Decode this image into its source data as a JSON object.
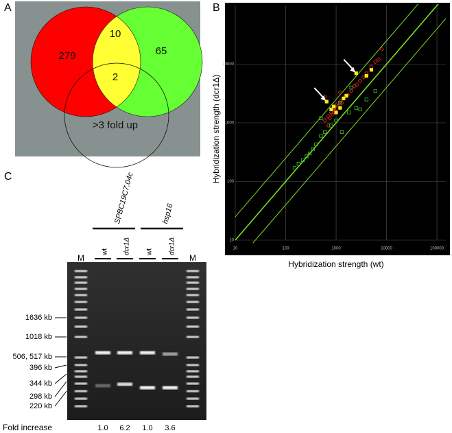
{
  "panel_labels": [
    "A",
    "B",
    "C"
  ],
  "venn": {
    "left_count": "279",
    "top_overlap": "10",
    "right_count": "65",
    "center_count": "2",
    "circle_label": ">3 fold up"
  },
  "chart_data": {
    "type": "scatter",
    "log_x": true,
    "log_y": true,
    "grid": true,
    "xlabel": "Hybridization strength (wt)",
    "ylabel": "Hybridization strength (dcr1Δ)",
    "xlim": [
      10,
      150000
    ],
    "ylim": [
      10,
      100000
    ],
    "xticks": [
      10,
      100,
      1000,
      10000,
      100000
    ],
    "yticks": [
      10,
      100,
      1000,
      10000
    ],
    "guide_factors": [
      0.4,
      1,
      2.5
    ],
    "guide_color": "#7ddc1f",
    "series": [
      {
        "color": "#e0281e",
        "marker": "diamond",
        "x": [
          600,
          700,
          750,
          800,
          850,
          900,
          950,
          1000,
          1100,
          1200,
          1300,
          1500,
          1700,
          2000,
          2300,
          2600,
          3000,
          3500,
          4000,
          5000,
          6000,
          7000,
          600,
          900,
          1200,
          8000,
          700
        ],
        "values": [
          1100,
          1300,
          1200,
          1500,
          1400,
          1700,
          1600,
          2000,
          1900,
          2300,
          2200,
          2800,
          3000,
          3500,
          4200,
          4500,
          5200,
          6000,
          7000,
          9000,
          11000,
          12000,
          2800,
          1800,
          3300,
          18000,
          900
        ]
      },
      {
        "color": "#3fbf2a",
        "marker": "square",
        "x": [
          150,
          180,
          220,
          260,
          300,
          350,
          400,
          500,
          600,
          800,
          1000,
          1300,
          1800,
          2500,
          3000,
          4000,
          6000,
          500,
          1200,
          2000
        ],
        "values": [
          170,
          200,
          230,
          270,
          300,
          360,
          430,
          600,
          700,
          900,
          1100,
          700,
          1500,
          1800,
          1700,
          2500,
          3500,
          1200,
          2200,
          4000
        ]
      },
      {
        "color": "#ffe81a",
        "marker": "filled-square",
        "x": [
          650,
          800,
          900,
          1000,
          1200,
          1400,
          1600,
          2500,
          4000,
          5000
        ],
        "values": [
          2300,
          1700,
          1900,
          1500,
          1800,
          2600,
          2900,
          7000,
          6300,
          8000
        ]
      }
    ]
  },
  "gel": {
    "genes": [
      "SPBC19C7.04c",
      "hsp16"
    ],
    "lanes": [
      "M",
      "wt",
      "dcr1Δ",
      "wt",
      "dcr1Δ",
      "M"
    ],
    "size_labels": [
      "1636 kb",
      "1018 kb",
      "506, 517 kb",
      "396 kb",
      "344 kb",
      "298 kb",
      "220 kb"
    ],
    "fold_label": "Fold increase",
    "fold_values": [
      "1.0",
      "6.2",
      "1.0",
      "3.6"
    ]
  }
}
